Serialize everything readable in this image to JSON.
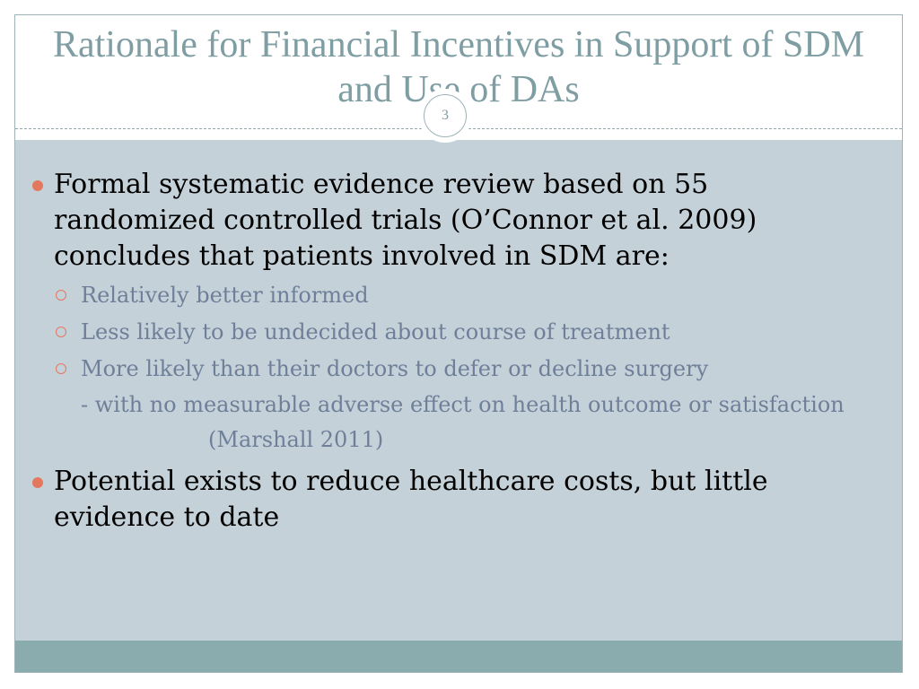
{
  "slide": {
    "title": "Rationale for Financial Incentives in Support of SDM and Use of DAs",
    "page_number": "3",
    "bullets": [
      {
        "text": "Formal systematic evidence review based on 55 randomized controlled trials (O’Connor et al. 2009) concludes that patients involved in SDM are:",
        "subitems": [
          "Relatively better informed",
          "Less likely to be undecided about course of treatment",
          "More likely than their doctors to defer or decline surgery"
        ],
        "continuation": "- with no measurable adverse effect on health outcome or satisfaction",
        "citation": "(Marshall 2011)"
      },
      {
        "text": "Potential exists to reduce healthcare costs, but little evidence to date"
      }
    ]
  },
  "colors": {
    "title": "#7f9ea3",
    "content_background": "#c5d1d8",
    "footer_bar": "#8aacae",
    "bullet_accent": "#e3785f",
    "sub_text": "#6f7f9a"
  }
}
